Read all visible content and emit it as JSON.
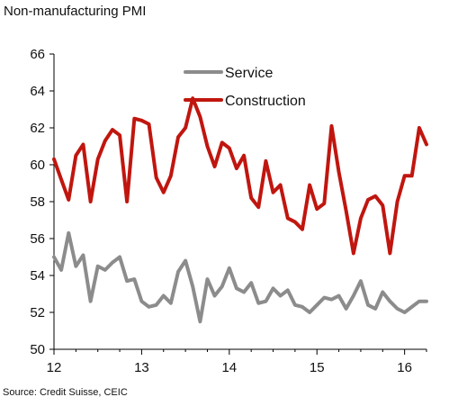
{
  "header": {
    "title": "Non-manufacturing PMI"
  },
  "footer": {
    "source": "Source: Credit Suisse, CEIC"
  },
  "chart_data": {
    "type": "line",
    "ylim": [
      50,
      66
    ],
    "yticks": [
      50,
      52,
      54,
      56,
      58,
      60,
      62,
      64,
      66
    ],
    "xlim": [
      2012.0,
      2016.25
    ],
    "xticks": [
      {
        "value": 2012,
        "label": "12"
      },
      {
        "value": 2013,
        "label": "13"
      },
      {
        "value": 2014,
        "label": "14"
      },
      {
        "value": 2015,
        "label": "15"
      },
      {
        "value": 2016,
        "label": "16"
      }
    ],
    "legend_position": "top-center",
    "grid": false,
    "series": [
      {
        "name": "Service",
        "color": "#8c8c8c",
        "x": [
          2012.0,
          2012.083,
          2012.167,
          2012.25,
          2012.333,
          2012.417,
          2012.5,
          2012.583,
          2012.667,
          2012.75,
          2012.833,
          2012.917,
          2013.0,
          2013.083,
          2013.167,
          2013.25,
          2013.333,
          2013.417,
          2013.5,
          2013.583,
          2013.667,
          2013.75,
          2013.833,
          2013.917,
          2014.0,
          2014.083,
          2014.167,
          2014.25,
          2014.333,
          2014.417,
          2014.5,
          2014.583,
          2014.667,
          2014.75,
          2014.833,
          2014.917,
          2015.0,
          2015.083,
          2015.167,
          2015.25,
          2015.333,
          2015.417,
          2015.5,
          2015.583,
          2015.667,
          2015.75,
          2015.833,
          2015.917,
          2016.0,
          2016.083,
          2016.167,
          2016.25
        ],
        "values": [
          55.0,
          54.3,
          56.3,
          54.5,
          55.1,
          52.6,
          54.5,
          54.3,
          54.7,
          55.0,
          53.7,
          53.8,
          52.6,
          52.3,
          52.4,
          52.9,
          52.5,
          54.2,
          54.8,
          53.4,
          51.5,
          53.8,
          52.9,
          53.4,
          54.4,
          53.3,
          53.1,
          53.6,
          52.5,
          52.6,
          53.3,
          52.9,
          53.2,
          52.4,
          52.3,
          52.0,
          52.4,
          52.8,
          52.7,
          52.9,
          52.2,
          52.9,
          53.7,
          52.4,
          52.2,
          53.1,
          52.6,
          52.2,
          52.0,
          52.3,
          52.6,
          52.6
        ]
      },
      {
        "name": "Construction",
        "color": "#c0160f",
        "x": [
          2012.0,
          2012.083,
          2012.167,
          2012.25,
          2012.333,
          2012.417,
          2012.5,
          2012.583,
          2012.667,
          2012.75,
          2012.833,
          2012.917,
          2013.0,
          2013.083,
          2013.167,
          2013.25,
          2013.333,
          2013.417,
          2013.5,
          2013.583,
          2013.667,
          2013.75,
          2013.833,
          2013.917,
          2014.0,
          2014.083,
          2014.167,
          2014.25,
          2014.333,
          2014.417,
          2014.5,
          2014.583,
          2014.667,
          2014.75,
          2014.833,
          2014.917,
          2015.0,
          2015.083,
          2015.167,
          2015.25,
          2015.333,
          2015.417,
          2015.5,
          2015.583,
          2015.667,
          2015.75,
          2015.833,
          2015.917,
          2016.0,
          2016.083,
          2016.167,
          2016.25
        ],
        "values": [
          60.3,
          59.2,
          58.1,
          60.5,
          61.1,
          58.0,
          60.3,
          61.3,
          61.9,
          61.6,
          58.0,
          62.5,
          62.4,
          62.2,
          59.3,
          58.5,
          59.4,
          61.5,
          62.0,
          63.6,
          62.6,
          61.0,
          59.9,
          61.2,
          60.9,
          59.8,
          60.5,
          58.2,
          57.7,
          60.2,
          58.5,
          58.9,
          57.1,
          56.9,
          56.5,
          58.9,
          57.6,
          57.9,
          62.1,
          59.6,
          57.5,
          55.2,
          57.1,
          58.1,
          58.3,
          57.8,
          55.2,
          58.0,
          59.4,
          59.4,
          62.0,
          61.1
        ]
      }
    ]
  }
}
